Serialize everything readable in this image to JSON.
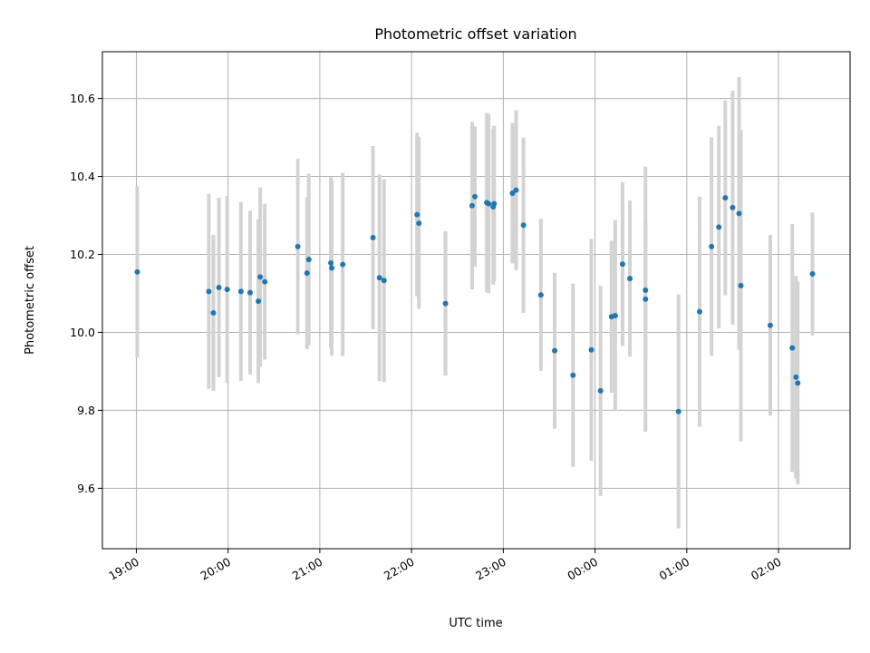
{
  "chart_data": {
    "type": "scatter",
    "title": "Photometric offset variation",
    "xlabel": "UTC time",
    "ylabel": "Photometric offset",
    "x_unit": "hours UTC (24+ = after midnight)",
    "xlim": [
      18.63,
      26.78
    ],
    "ylim": [
      9.445,
      10.72
    ],
    "x_ticks": [
      {
        "label": "19:00",
        "value": 19
      },
      {
        "label": "20:00",
        "value": 20
      },
      {
        "label": "21:00",
        "value": 21
      },
      {
        "label": "22:00",
        "value": 22
      },
      {
        "label": "23:00",
        "value": 23
      },
      {
        "label": "00:00",
        "value": 24
      },
      {
        "label": "01:00",
        "value": 25
      },
      {
        "label": "02:00",
        "value": 26
      }
    ],
    "y_ticks": [
      {
        "label": "9.6",
        "value": 9.6
      },
      {
        "label": "9.8",
        "value": 9.8
      },
      {
        "label": "10.0",
        "value": 10.0
      },
      {
        "label": "10.2",
        "value": 10.2
      },
      {
        "label": "10.4",
        "value": 10.4
      },
      {
        "label": "10.6",
        "value": 10.6
      }
    ],
    "grid": true,
    "legend": "none",
    "colors": {
      "marker": "#1f77b4",
      "errorbar": "#d3d3d3"
    },
    "series": [
      {
        "x": [
          19.01,
          19.79,
          19.84,
          19.9,
          19.99,
          20.14,
          20.24,
          20.33,
          20.35,
          20.4,
          20.76,
          20.86,
          20.88,
          21.12,
          21.13,
          21.25,
          21.58,
          21.65,
          21.7,
          22.06,
          22.08,
          22.37,
          22.66,
          22.69,
          22.82,
          22.84,
          22.89,
          22.9,
          23.1,
          23.14,
          23.22,
          23.41,
          23.56,
          23.76,
          23.96,
          24.06,
          24.18,
          24.22,
          24.3,
          24.38,
          24.55,
          24.55,
          24.91,
          25.14,
          25.27,
          25.35,
          25.42,
          25.5,
          25.57,
          25.59,
          25.91,
          26.15,
          26.19,
          26.21,
          26.37
        ],
        "y": [
          10.155,
          10.105,
          10.05,
          10.115,
          10.11,
          10.105,
          10.102,
          10.08,
          10.142,
          10.13,
          10.22,
          10.152,
          10.187,
          10.178,
          10.165,
          10.174,
          10.243,
          10.14,
          10.133,
          10.302,
          10.28,
          10.074,
          10.325,
          10.348,
          10.333,
          10.33,
          10.322,
          10.33,
          10.357,
          10.365,
          10.275,
          10.096,
          9.953,
          9.89,
          9.955,
          9.85,
          10.04,
          10.043,
          10.175,
          10.138,
          10.108,
          10.085,
          9.797,
          10.053,
          10.22,
          10.27,
          10.345,
          10.32,
          10.305,
          10.12,
          10.018,
          9.96,
          9.885,
          9.87,
          10.15
        ],
        "yerr": [
          0.22,
          0.25,
          0.2,
          0.23,
          0.24,
          0.23,
          0.21,
          0.21,
          0.23,
          0.2,
          0.225,
          0.195,
          0.22,
          0.22,
          0.225,
          0.235,
          0.235,
          0.265,
          0.26,
          0.21,
          0.22,
          0.185,
          0.215,
          0.18,
          0.23,
          0.23,
          0.2,
          0.2,
          0.18,
          0.205,
          0.225,
          0.195,
          0.2,
          0.235,
          0.285,
          0.27,
          0.195,
          0.245,
          0.21,
          0.2,
          0.18,
          0.34,
          0.3,
          0.295,
          0.28,
          0.26,
          0.25,
          0.3,
          0.35,
          0.4,
          0.232,
          0.318,
          0.26,
          0.26,
          0.158
        ]
      }
    ]
  }
}
